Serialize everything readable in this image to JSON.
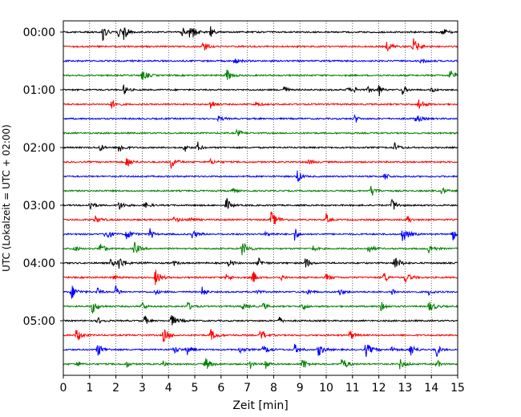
{
  "chart_data": {
    "type": "line",
    "title": "",
    "xlabel": "Zeit  [min]",
    "ylabel": "UTC (Lokalzeit = UTC + 02:00)",
    "xlim": [
      0,
      15
    ],
    "x_ticks": [
      "0",
      "1",
      "2",
      "3",
      "4",
      "5",
      "6",
      "7",
      "8",
      "9",
      "10",
      "11",
      "12",
      "13",
      "14",
      "15"
    ],
    "y_tick_labels": [
      "00:00",
      "01:00",
      "02:00",
      "03:00",
      "04:00",
      "05:00"
    ],
    "grid": "vertical dotted at each minute",
    "trace_colors": [
      "#000000",
      "#ff0000",
      "#0000ff",
      "#008000"
    ],
    "row_interval_minutes": 15,
    "rows": [
      {
        "start": "00:00",
        "color": "#000000",
        "events": [
          1.5,
          2.1,
          2.3,
          4.5,
          4.8,
          4.9,
          5.6,
          14.4
        ]
      },
      {
        "start": "00:15",
        "color": "#ff0000",
        "events": [
          5.3,
          12.3,
          13.3
        ]
      },
      {
        "start": "00:30",
        "color": "#0000ff",
        "events": [
          6.5,
          13.6
        ]
      },
      {
        "start": "00:45",
        "color": "#008000",
        "events": [
          3.0,
          6.2,
          14.7
        ]
      },
      {
        "start": "01:00",
        "color": "#000000",
        "events": [
          2.3,
          8.4,
          10.8,
          11.1,
          11.6,
          12.0,
          12.9,
          14.0
        ]
      },
      {
        "start": "01:15",
        "color": "#ff0000",
        "events": [
          1.8,
          5.6,
          7.3,
          13.5
        ]
      },
      {
        "start": "01:30",
        "color": "#0000ff",
        "events": [
          5.9,
          11.1,
          13.4
        ]
      },
      {
        "start": "01:45",
        "color": "#008000",
        "events": [
          6.6
        ]
      },
      {
        "start": "02:00",
        "color": "#000000",
        "events": [
          1.4,
          2.1,
          4.6,
          5.1,
          12.6
        ]
      },
      {
        "start": "02:15",
        "color": "#ff0000",
        "events": [
          2.4,
          4.1,
          5.6,
          9.3
        ]
      },
      {
        "start": "02:30",
        "color": "#0000ff",
        "events": [
          8.9,
          12.2
        ]
      },
      {
        "start": "02:45",
        "color": "#008000",
        "events": [
          6.4,
          11.7,
          14.4
        ]
      },
      {
        "start": "03:00",
        "color": "#000000",
        "events": [
          1.0,
          2.1,
          3.1,
          6.2,
          12.5
        ]
      },
      {
        "start": "03:15",
        "color": "#ff0000",
        "events": [
          1.2,
          4.2,
          4.8,
          7.9,
          10.0,
          13.1
        ]
      },
      {
        "start": "03:30",
        "color": "#0000ff",
        "events": [
          1.6,
          2.4,
          3.3,
          4.9,
          7.7,
          8.8,
          12.9,
          14.8
        ]
      },
      {
        "start": "03:45",
        "color": "#008000",
        "events": [
          0.4,
          1.4,
          2.7,
          6.8,
          9.5,
          11.6,
          13.9
        ]
      },
      {
        "start": "04:00",
        "color": "#000000",
        "events": [
          1.8,
          2.1,
          3.0,
          4.2,
          6.3,
          7.4,
          9.2,
          12.6
        ]
      },
      {
        "start": "04:15",
        "color": "#ff0000",
        "events": [
          1.9,
          3.5,
          6.2,
          7.2,
          8.3,
          10.0,
          12.2,
          13.0
        ]
      },
      {
        "start": "04:30",
        "color": "#0000ff",
        "events": [
          0.3,
          1.3,
          2.0,
          3.5,
          5.3,
          7.3,
          9.3,
          10.5,
          12.5,
          13.9
        ]
      },
      {
        "start": "04:45",
        "color": "#008000",
        "events": [
          1.1,
          3.0,
          4.7,
          6.8,
          7.6,
          9.1,
          12.1,
          13.9
        ]
      },
      {
        "start": "05:00",
        "color": "#000000",
        "events": [
          1.3,
          3.1,
          4.1,
          8.2
        ]
      },
      {
        "start": "05:15",
        "color": "#ff0000",
        "events": [
          0.5,
          3.8,
          5.6,
          7.5,
          10.9
        ]
      },
      {
        "start": "05:30",
        "color": "#0000ff",
        "events": [
          1.3,
          4.2,
          4.7,
          6.7,
          7.6,
          8.8,
          9.7,
          11.5,
          12.5,
          13.2,
          14.2
        ]
      },
      {
        "start": "05:45",
        "color": "#008000",
        "events": [
          0.5,
          2.4,
          3.8,
          5.4,
          7.1,
          7.7,
          9.1,
          10.6,
          12.8,
          14.2
        ]
      }
    ]
  }
}
